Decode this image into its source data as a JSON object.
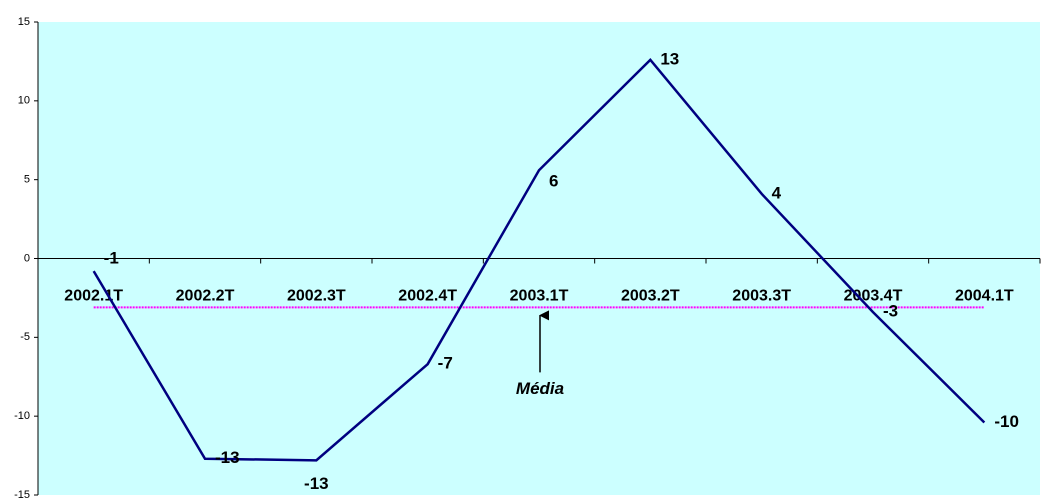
{
  "chart_data": {
    "type": "line",
    "categories": [
      "2002.1T",
      "2002.2T",
      "2002.3T",
      "2002.4T",
      "2003.1T",
      "2003.2T",
      "2003.3T",
      "2003.4T",
      "2004.1T"
    ],
    "values": [
      -0.8,
      -12.7,
      -12.8,
      -6.7,
      5.6,
      12.6,
      4.1,
      -3.4,
      -10.4
    ],
    "value_labels": [
      "-1",
      "-13",
      "-13",
      "-7",
      "6",
      "13",
      "4",
      "-3",
      "-10"
    ],
    "color": "#000080",
    "ylim": [
      -15,
      15
    ],
    "yticks": [
      -15,
      -10,
      -5,
      0,
      5,
      10,
      15
    ],
    "reference_line": {
      "label": "Média",
      "value": -3.1,
      "color": "#ff00ff"
    },
    "plot_background": "#ccffff"
  }
}
